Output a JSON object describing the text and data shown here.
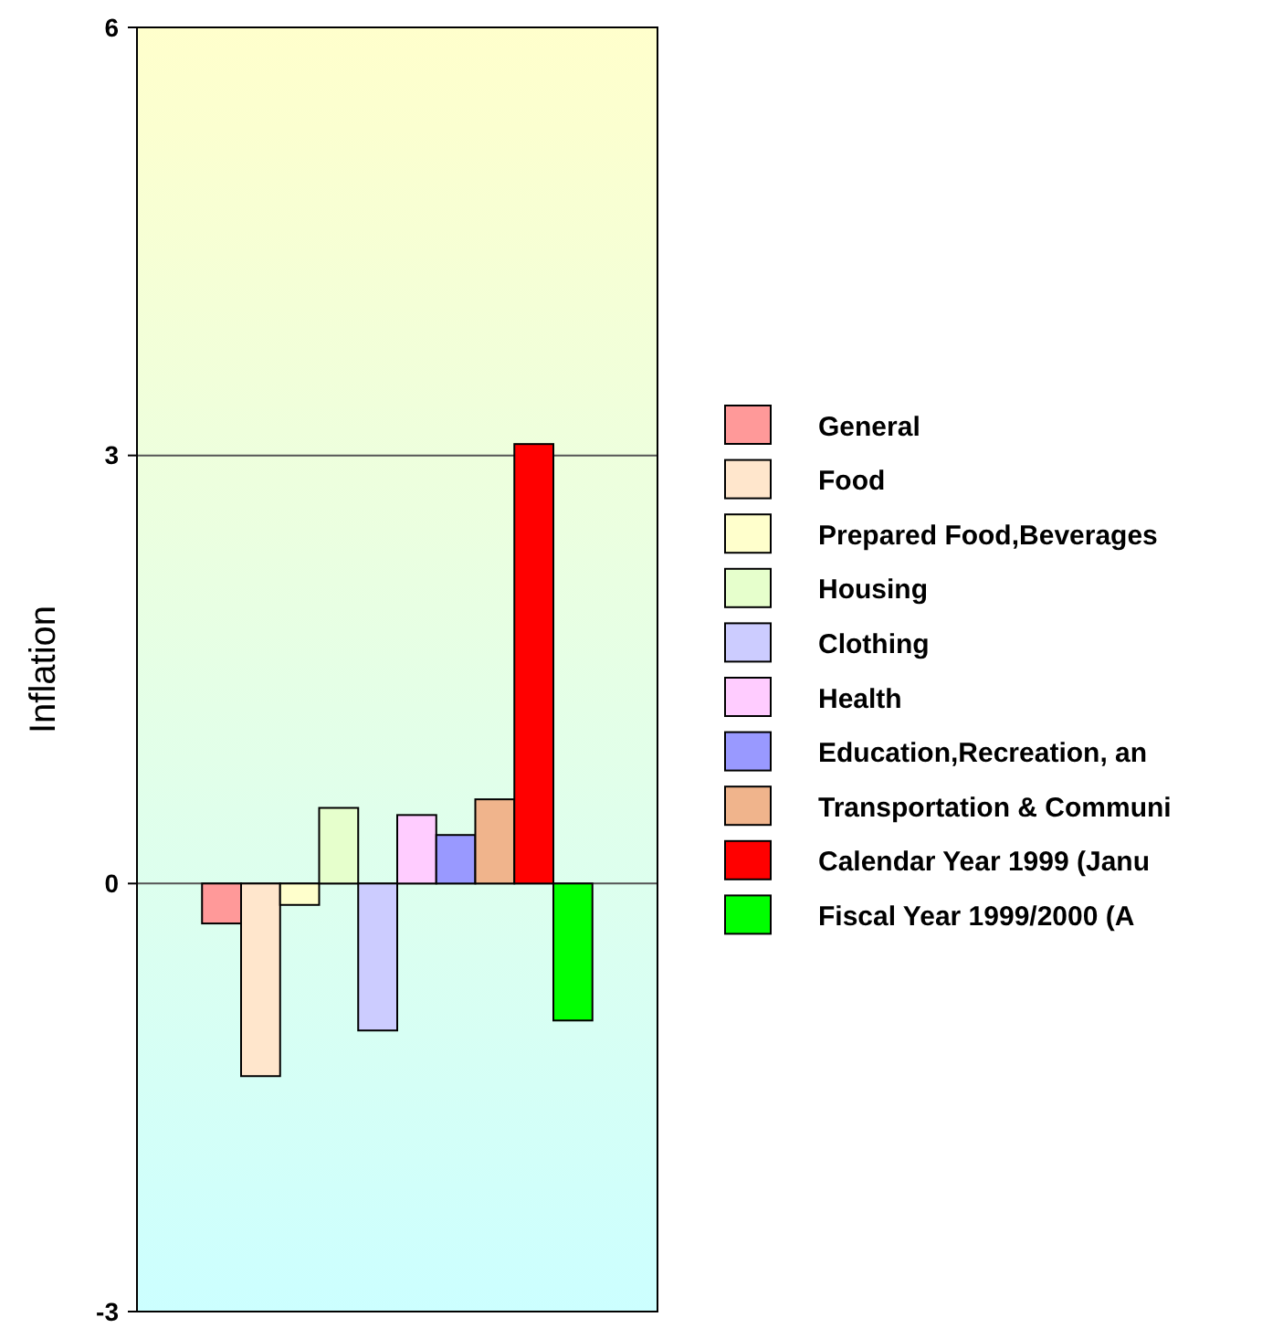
{
  "chart_data": {
    "type": "bar",
    "ylabel": "Inflation",
    "categories": [
      null
    ],
    "series": [
      {
        "name": "General",
        "color": "#ff9999",
        "values": [
          -0.28
        ]
      },
      {
        "name": "Food",
        "color": "#ffe6cc",
        "values": [
          -1.35
        ]
      },
      {
        "name": "Prepared Food,Beverages",
        "color": "#ffffcc",
        "values": [
          -0.15
        ]
      },
      {
        "name": "Housing",
        "color": "#e6ffcc",
        "values": [
          0.53
        ]
      },
      {
        "name": "Clothing",
        "color": "#ccccff",
        "values": [
          -1.03
        ]
      },
      {
        "name": "Health",
        "color": "#ffccff",
        "values": [
          0.48
        ]
      },
      {
        "name": "Education,Recreation, an",
        "color": "#9999ff",
        "values": [
          0.34
        ]
      },
      {
        "name": "Transportation & Communi",
        "color": "#f0b48c",
        "values": [
          0.59
        ]
      },
      {
        "name": "Calendar Year 1999 (Janu",
        "color": "#ff0000",
        "values": [
          3.08
        ]
      },
      {
        "name": "Fiscal Year 1999/2000 (A",
        "color": "#00ff00",
        "values": [
          -0.96
        ]
      }
    ],
    "ylim": [
      -3,
      6
    ],
    "yticks": [
      -3,
      0,
      3,
      6
    ],
    "grid": "y",
    "legend": "right"
  }
}
